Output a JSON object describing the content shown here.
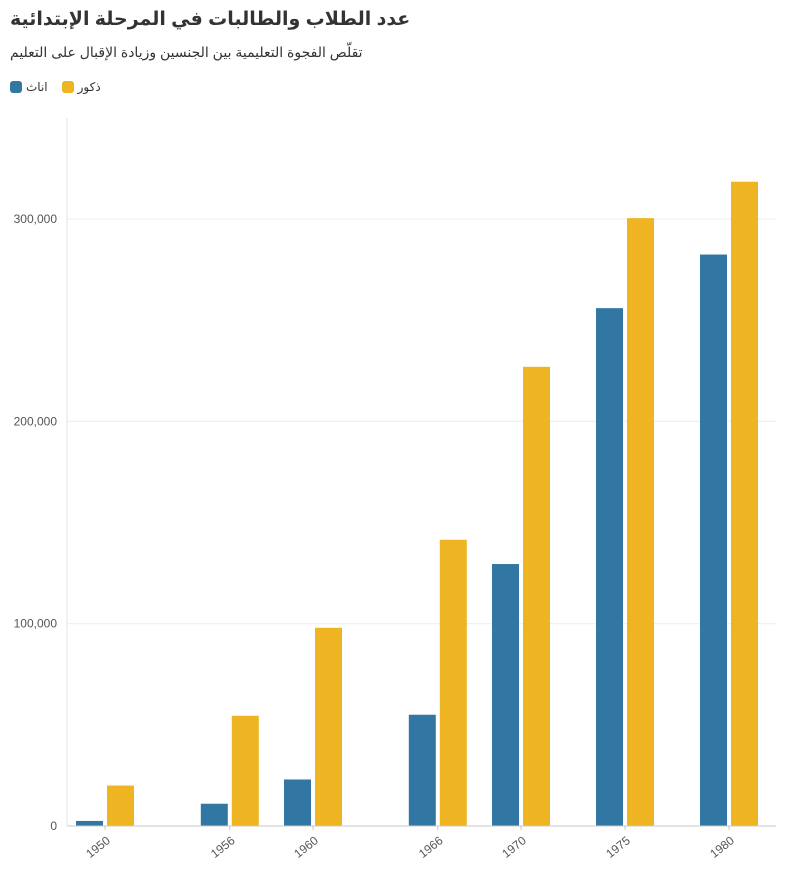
{
  "chart_data": {
    "type": "bar",
    "title": "عدد الطلاب والطالبات في المرحلة الإبتدائية",
    "subtitle": "تقلّص الفجوة التعليمية بين الجنسين وزيادة الإقبال على التعليم",
    "categories": [
      "1950",
      "1956",
      "1960",
      "1966",
      "1970",
      "1975",
      "1980"
    ],
    "x": [
      1950,
      1956,
      1960,
      1966,
      1970,
      1975,
      1980
    ],
    "series": [
      {
        "name": "اناث",
        "color": "#3277a3",
        "values": [
          2500,
          11000,
          23000,
          55000,
          129500,
          256000,
          282500
        ]
      },
      {
        "name": "ذكور",
        "color": "#eeb422",
        "values": [
          20000,
          54500,
          98000,
          141500,
          227000,
          300500,
          318500
        ]
      }
    ],
    "y_ticks": [
      0,
      100000,
      200000,
      300000
    ],
    "y_tick_labels": [
      "0",
      "100,000",
      "200,000",
      "300,000"
    ],
    "ylim": [
      0,
      350000
    ],
    "xlim": [
      1948.8,
      1981.6
    ],
    "grid": true,
    "legend": "top-left"
  }
}
